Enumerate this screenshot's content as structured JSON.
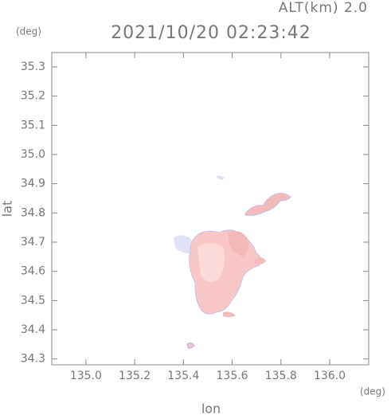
{
  "chart_data": {
    "type": "map",
    "subtitle": "ALT(km) 2.0",
    "title": "2021/10/20 02:23:42",
    "y_unit": "(deg)",
    "x_unit": "(deg)",
    "x_label": "lon",
    "y_label": "lat",
    "xlim": [
      134.86,
      136.16
    ],
    "ylim": [
      34.28,
      35.349
    ],
    "xticks": [
      {
        "value": 135,
        "label": "135.0"
      },
      135.2,
      135.4,
      135.6,
      135.8,
      {
        "value": 136,
        "label": "136.0"
      }
    ],
    "yticks": [
      34.3,
      34.4,
      34.5,
      34.6,
      34.7,
      34.8,
      34.9,
      {
        "value": 35,
        "label": "35.0"
      },
      35.1,
      35.2,
      35.3
    ]
  }
}
